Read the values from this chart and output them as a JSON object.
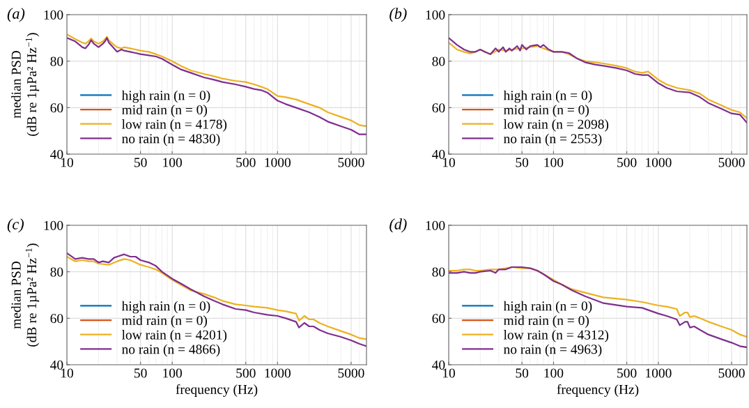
{
  "chart_data": [
    {
      "type": "line",
      "title": "(a)",
      "ylabel": "median PSD\n(dB re 1µPa² Hz$^{−1}$)",
      "log": "x",
      "xlim": [
        10,
        7000
      ],
      "xticks": [
        10,
        50,
        100,
        500,
        1000,
        5000
      ],
      "ylim": [
        40,
        100
      ],
      "yticks": [
        40,
        60,
        80,
        100
      ],
      "grid": true,
      "legend": "bottom left",
      "line_style": "solid",
      "marker": "none",
      "series": [
        {
          "name": "high rain (n = 0)",
          "color": "#0072bd"
        },
        {
          "name": "mid rain (n = 0)",
          "color": "#d95319"
        },
        {
          "name": "low rain (n = 4178)",
          "color": "#edb120",
          "x": [
            10,
            12,
            14,
            15,
            16,
            17,
            18,
            20,
            22,
            23,
            24,
            25,
            28,
            30,
            33,
            35,
            40,
            45,
            50,
            60,
            70,
            80,
            100,
            120,
            150,
            200,
            250,
            300,
            400,
            500,
            600,
            700,
            800,
            1000,
            1200,
            1500,
            2000,
            2500,
            3000,
            4000,
            5000,
            6000,
            7000
          ],
          "values": [
            91.5,
            89.5,
            88,
            87.5,
            88.5,
            89.8,
            88.5,
            87.5,
            88.5,
            89.5,
            90.5,
            89,
            87,
            86,
            85.5,
            86,
            85.5,
            85,
            84.5,
            84,
            83,
            82,
            80,
            78,
            76,
            74.5,
            73.5,
            72.5,
            71.5,
            71,
            70,
            69,
            68,
            65,
            64.5,
            63.5,
            61.5,
            60,
            58,
            56,
            54.5,
            52.5,
            52
          ]
        },
        {
          "name": "no rain (n = 4830)",
          "color": "#7e2f8e",
          "x": [
            10,
            12,
            14,
            15,
            16,
            17,
            18,
            20,
            22,
            23,
            24,
            25,
            28,
            30,
            33,
            35,
            40,
            45,
            50,
            60,
            70,
            80,
            100,
            120,
            150,
            200,
            250,
            300,
            400,
            500,
            600,
            700,
            800,
            1000,
            1200,
            1500,
            2000,
            2500,
            3000,
            4000,
            5000,
            6000,
            7000
          ],
          "values": [
            90,
            88.5,
            86,
            85.5,
            87,
            89,
            87.5,
            86,
            87.5,
            88.5,
            90,
            88,
            85.5,
            84,
            85,
            84.5,
            84,
            83.5,
            83,
            82.5,
            82,
            81,
            78.5,
            76.5,
            75,
            73,
            72,
            71,
            70,
            69,
            68,
            67.5,
            66.5,
            63,
            61.5,
            60,
            58,
            56,
            54,
            52,
            50.5,
            48.5,
            48.5
          ]
        }
      ]
    },
    {
      "type": "line",
      "title": "(b)",
      "log": "x",
      "xlim": [
        10,
        7000
      ],
      "xticks": [
        10,
        50,
        100,
        500,
        1000,
        5000
      ],
      "ylim": [
        40,
        100
      ],
      "yticks": [
        40,
        60,
        80,
        100
      ],
      "grid": true,
      "legend": "bottom left",
      "line_style": "solid",
      "marker": "none",
      "series": [
        {
          "name": "high rain (n = 0)",
          "color": "#0072bd"
        },
        {
          "name": "mid rain (n = 0)",
          "color": "#d95319"
        },
        {
          "name": "low rain (n = 2098)",
          "color": "#edb120",
          "x": [
            10,
            12,
            14,
            16,
            18,
            20,
            25,
            30,
            35,
            40,
            50,
            60,
            70,
            80,
            100,
            120,
            140,
            170,
            200,
            250,
            300,
            400,
            500,
            600,
            700,
            800,
            1000,
            1200,
            1500,
            2000,
            2500,
            3000,
            4000,
            5000,
            6000,
            7000
          ],
          "values": [
            88,
            85,
            84,
            83.3,
            84,
            85,
            83,
            85,
            84.5,
            85,
            85.5,
            86,
            86.5,
            85.5,
            84,
            84,
            83,
            81,
            80,
            79.5,
            79,
            78,
            77,
            75.5,
            75,
            75.5,
            72,
            70,
            68.5,
            67.5,
            66,
            63.5,
            61,
            59,
            58,
            55.5
          ]
        },
        {
          "name": "no rain (n = 2553)",
          "color": "#7e2f8e",
          "x": [
            10,
            12,
            14,
            16,
            18,
            20,
            22,
            25,
            28,
            30,
            33,
            35,
            38,
            40,
            45,
            48,
            50,
            55,
            60,
            70,
            75,
            80,
            90,
            100,
            120,
            140,
            170,
            200,
            250,
            300,
            400,
            500,
            600,
            700,
            800,
            1000,
            1200,
            1500,
            2000,
            2500,
            3000,
            4000,
            5000,
            6000,
            7000
          ],
          "values": [
            90,
            87,
            85,
            84,
            84,
            85,
            84,
            83,
            85.5,
            84,
            86,
            84,
            85.5,
            84.5,
            86.5,
            84.5,
            87,
            85,
            86.5,
            87,
            86,
            87,
            85,
            84,
            84,
            83.5,
            81,
            79.5,
            78.5,
            78,
            77,
            76,
            74.5,
            74,
            74,
            70.5,
            68.5,
            67,
            66.5,
            64.5,
            62,
            59.5,
            57.5,
            57,
            53.5
          ]
        }
      ]
    },
    {
      "type": "line",
      "title": "(c)",
      "xlabel": "frequency (Hz)",
      "ylabel": "median PSD\n(dB re 1µPa² Hz$^{−1}$)",
      "log": "x",
      "xlim": [
        10,
        7000
      ],
      "xticks": [
        10,
        50,
        100,
        500,
        1000,
        5000
      ],
      "ylim": [
        40,
        100
      ],
      "yticks": [
        40,
        60,
        80,
        100
      ],
      "grid": true,
      "legend": "bottom left",
      "line_style": "solid",
      "marker": "none",
      "series": [
        {
          "name": "high rain (n = 0)",
          "color": "#0072bd"
        },
        {
          "name": "mid rain (n = 0)",
          "color": "#d95319"
        },
        {
          "name": "low rain (n = 4201)",
          "color": "#edb120",
          "x": [
            10,
            12,
            14,
            16,
            18,
            20,
            25,
            30,
            35,
            40,
            50,
            60,
            70,
            80,
            100,
            120,
            150,
            200,
            250,
            300,
            400,
            500,
            600,
            800,
            1000,
            1200,
            1500,
            1600,
            1700,
            1800,
            2000,
            2200,
            2500,
            3000,
            4000,
            5000,
            6000,
            7000
          ],
          "values": [
            86.5,
            84.5,
            85,
            84.5,
            84.5,
            83.5,
            83,
            84.5,
            85.5,
            85,
            83,
            82,
            81,
            79.5,
            76.5,
            74.5,
            72,
            70.5,
            69,
            67.5,
            66,
            65.5,
            65,
            64.5,
            63.5,
            63,
            62,
            59,
            60,
            61,
            59.5,
            59.5,
            58,
            56.5,
            54.5,
            53,
            51.5,
            51
          ]
        },
        {
          "name": "no rain (n = 4866)",
          "color": "#7e2f8e",
          "x": [
            10,
            12,
            14,
            16,
            18,
            20,
            22,
            25,
            28,
            30,
            35,
            40,
            45,
            50,
            60,
            70,
            80,
            100,
            120,
            150,
            200,
            250,
            300,
            400,
            500,
            600,
            800,
            1000,
            1200,
            1500,
            1600,
            1800,
            2000,
            2200,
            2500,
            3000,
            4000,
            5000,
            6000,
            7000
          ],
          "values": [
            88,
            85.5,
            86,
            85.5,
            85.5,
            84,
            84.5,
            84,
            86,
            86.5,
            87.5,
            86.5,
            86.5,
            85,
            84,
            82.5,
            80,
            77,
            75,
            72.5,
            69.5,
            67.5,
            66,
            64,
            63.5,
            62.5,
            61.5,
            61,
            60,
            58.5,
            56,
            58,
            56.5,
            56.5,
            55,
            53.5,
            52,
            50.5,
            49,
            48
          ]
        }
      ]
    },
    {
      "type": "line",
      "title": "(d)",
      "xlabel": "frequency (Hz)",
      "log": "x",
      "xlim": [
        10,
        7000
      ],
      "xticks": [
        10,
        50,
        100,
        500,
        1000,
        5000
      ],
      "ylim": [
        40,
        100
      ],
      "yticks": [
        40,
        60,
        80,
        100
      ],
      "grid": true,
      "legend": "bottom left",
      "line_style": "solid",
      "marker": "none",
      "series": [
        {
          "name": "high rain (n = 0)",
          "color": "#0072bd"
        },
        {
          "name": "mid rain (n = 0)",
          "color": "#d95319"
        },
        {
          "name": "low rain (n = 4312)",
          "color": "#edb120",
          "x": [
            10,
            12,
            14,
            16,
            18,
            20,
            25,
            30,
            35,
            40,
            50,
            60,
            70,
            80,
            100,
            120,
            150,
            200,
            300,
            500,
            700,
            1000,
            1200,
            1500,
            1600,
            1800,
            1900,
            2000,
            2200,
            2500,
            3000,
            4000,
            5000,
            6000,
            7000
          ],
          "values": [
            80.5,
            80.5,
            81,
            81,
            80.5,
            80.5,
            81,
            81,
            81.5,
            82,
            81.5,
            81.5,
            80.5,
            79,
            76.5,
            74.5,
            72.5,
            71,
            69,
            68,
            67,
            65.5,
            65,
            64,
            61,
            62.5,
            62.5,
            60.5,
            61,
            60,
            58.5,
            56.5,
            55,
            53,
            52
          ]
        },
        {
          "name": "no rain (n = 4963)",
          "color": "#7e2f8e",
          "x": [
            10,
            12,
            14,
            16,
            18,
            20,
            25,
            28,
            30,
            35,
            40,
            50,
            60,
            70,
            80,
            100,
            120,
            150,
            200,
            300,
            500,
            700,
            1000,
            1200,
            1500,
            1600,
            1800,
            1900,
            2000,
            2200,
            2500,
            3000,
            4000,
            5000,
            6000,
            7000
          ],
          "values": [
            79.5,
            79.5,
            80,
            79.5,
            79.5,
            80,
            80.5,
            79.5,
            81,
            81,
            82,
            82,
            81.5,
            80.5,
            79,
            76,
            74.5,
            72,
            69.5,
            66.5,
            65,
            64.5,
            62,
            61,
            59.5,
            57,
            58.5,
            58.5,
            56,
            56.5,
            55,
            53,
            51,
            49.5,
            48,
            47.5
          ]
        }
      ]
    }
  ]
}
